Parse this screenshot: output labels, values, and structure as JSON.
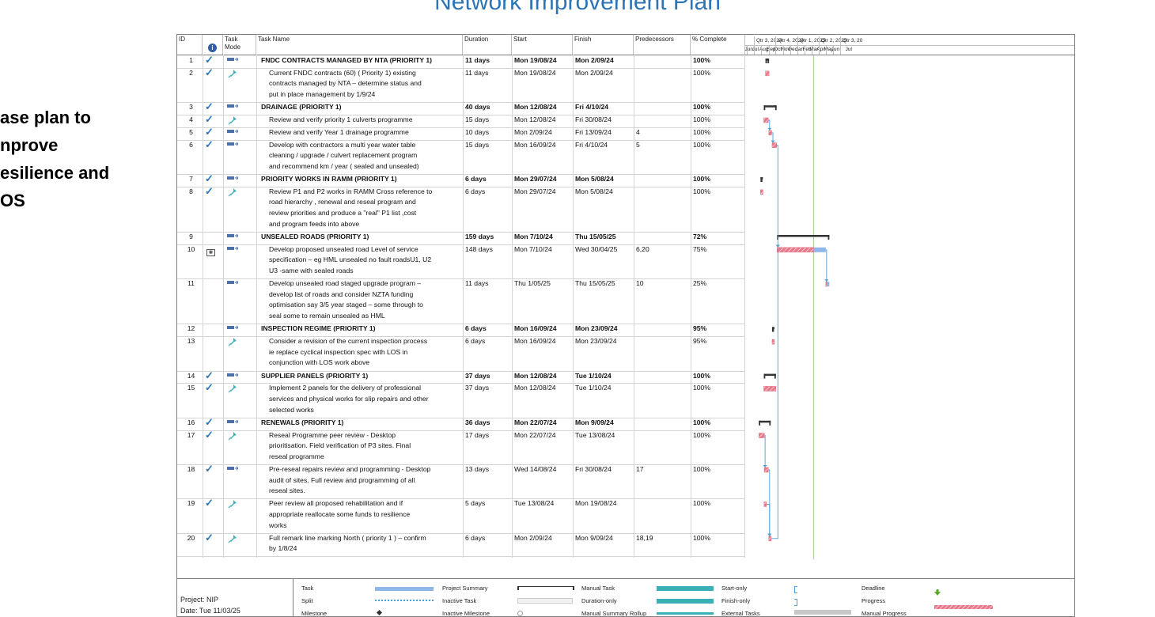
{
  "slide": {
    "title": "Network Improvement Plan",
    "side_lines": [
      "ase plan to",
      "nprove",
      "esilience and",
      "OS"
    ]
  },
  "columns": {
    "id": "ID",
    "task_mode_1": "Task",
    "task_mode_2": "Mode",
    "task_name": "Task Name",
    "duration": "Duration",
    "start": "Start",
    "finish": "Finish",
    "predecessors": "Predecessors",
    "complete": "% Complete"
  },
  "timeline": {
    "quarters": [
      "Qtr 3, 2024",
      "Qtr 4, 2024",
      "Qtr 1, 2025",
      "Qtr 2, 2025",
      "Qtr 3, 20"
    ],
    "months": [
      "Jun",
      "Jul",
      "Aug",
      "Sep",
      "Oct",
      "Nov",
      "Dec",
      "Jan",
      "Feb",
      "Mar",
      "Apr",
      "May",
      "Jun",
      "Jul"
    ]
  },
  "tasks": [
    {
      "id": "1",
      "check": true,
      "mode": "auto",
      "name": [
        "FNDC CONTRACTS MANAGED BY NTA (PRIORITY 1)"
      ],
      "summary": true,
      "duration": "11 days",
      "start": "Mon 19/08/24",
      "finish": "Mon 2/09/24",
      "pred": "",
      "complete": "100%"
    },
    {
      "id": "2",
      "check": true,
      "mode": "manual",
      "name": [
        "Current FNDC contracts (60) ( Priority 1)  existing",
        "contracts managed by NTA – determine status and",
        "put in place  management by 1/9/24"
      ],
      "summary": false,
      "duration": "11 days",
      "start": "Mon 19/08/24",
      "finish": "Mon 2/09/24",
      "pred": "",
      "complete": "100%"
    },
    {
      "id": "3",
      "check": true,
      "mode": "auto",
      "name": [
        "DRAINAGE (PRIORITY 1)"
      ],
      "summary": true,
      "duration": "40 days",
      "start": "Mon 12/08/24",
      "finish": "Fri 4/10/24",
      "pred": "",
      "complete": "100%"
    },
    {
      "id": "4",
      "check": true,
      "mode": "manual",
      "name": [
        "Review and verify priority 1 culverts programme"
      ],
      "summary": false,
      "duration": "15 days",
      "start": "Mon 12/08/24",
      "finish": "Fri 30/08/24",
      "pred": "",
      "complete": "100%"
    },
    {
      "id": "5",
      "check": true,
      "mode": "auto",
      "name": [
        "Review and verify Year 1 drainage programme"
      ],
      "summary": false,
      "duration": "10 days",
      "start": "Mon 2/09/24",
      "finish": "Fri 13/09/24",
      "pred": "4",
      "complete": "100%"
    },
    {
      "id": "6",
      "check": true,
      "mode": "auto",
      "name": [
        "Develop with contractors a multi year water table",
        "cleaning / upgrade / culvert replacement  program",
        "and recommend km / year ( sealed and unsealed)"
      ],
      "summary": false,
      "duration": "15 days",
      "start": "Mon 16/09/24",
      "finish": "Fri 4/10/24",
      "pred": "5",
      "complete": "100%"
    },
    {
      "id": "7",
      "check": true,
      "mode": "auto",
      "name": [
        "PRIORITY WORKS IN RAMM (PRIORITY 1)"
      ],
      "summary": true,
      "duration": "6 days",
      "start": "Mon 29/07/24",
      "finish": "Mon 5/08/24",
      "pred": "",
      "complete": "100%"
    },
    {
      "id": "8",
      "check": true,
      "mode": "manual",
      "name": [
        "Review P1 and P2 works in RAMM Cross reference to",
        "road hierarchy , renewal and reseal program and",
        "review priorities and produce a \"real\" P1 list ,cost",
        "and program feeds into above"
      ],
      "summary": false,
      "duration": "6 days",
      "start": "Mon 29/07/24",
      "finish": "Mon 5/08/24",
      "pred": "",
      "complete": "100%"
    },
    {
      "id": "9",
      "check": false,
      "mode": "auto",
      "name": [
        "UNSEALED ROADS (PRIORITY 1)"
      ],
      "summary": true,
      "duration": "159 days",
      "start": "Mon 7/10/24",
      "finish": "Thu 15/05/25",
      "pred": "",
      "complete": "72%"
    },
    {
      "id": "10",
      "check": false,
      "cal": true,
      "mode": "auto",
      "name": [
        "Develop proposed unsealed road Level of service",
        "specification – eg HML unsealed no fault roadsU1, U2",
        "U3 -same with sealed roads"
      ],
      "summary": false,
      "duration": "148 days",
      "start": "Mon 7/10/24",
      "finish": "Wed 30/04/25",
      "pred": "6,20",
      "complete": "75%"
    },
    {
      "id": "11",
      "check": false,
      "mode": "auto",
      "name": [
        "Develop unsealed road staged upgrade program –",
        "develop list of roads and consider NZTA funding",
        "optimisation say 3/5 year staged – some through to",
        "seal some to remain unsealed as HML"
      ],
      "summary": false,
      "duration": "11 days",
      "start": "Thu 1/05/25",
      "finish": "Thu 15/05/25",
      "pred": "10",
      "complete": "25%"
    },
    {
      "id": "12",
      "check": false,
      "mode": "auto",
      "name": [
        "INSPECTION REGIME (PRIORITY 1)"
      ],
      "summary": true,
      "duration": "6 days",
      "start": "Mon 16/09/24",
      "finish": "Mon 23/09/24",
      "pred": "",
      "complete": "95%"
    },
    {
      "id": "13",
      "check": false,
      "mode": "manual",
      "name": [
        "Consider a revision of the current inspection process",
        "ie replace cyclical inspection spec with LOS in",
        "conjunction with LOS work above"
      ],
      "summary": false,
      "duration": "6 days",
      "start": "Mon 16/09/24",
      "finish": "Mon 23/09/24",
      "pred": "",
      "complete": "95%"
    },
    {
      "id": "14",
      "check": true,
      "mode": "auto",
      "name": [
        "SUPPLIER PANELS (PRIORITY 1)"
      ],
      "summary": true,
      "duration": "37 days",
      "start": "Mon 12/08/24",
      "finish": "Tue 1/10/24",
      "pred": "",
      "complete": "100%"
    },
    {
      "id": "15",
      "check": true,
      "mode": "manual",
      "name": [
        "Implement 2 panels for the delivery of professional",
        "services and physical works for slip repairs and other",
        "selected works"
      ],
      "summary": false,
      "duration": "37 days",
      "start": "Mon 12/08/24",
      "finish": "Tue 1/10/24",
      "pred": "",
      "complete": "100%"
    },
    {
      "id": "16",
      "check": true,
      "mode": "auto",
      "name": [
        "RENEWALS (PRIORITY 1)"
      ],
      "summary": true,
      "duration": "36 days",
      "start": "Mon 22/07/24",
      "finish": "Mon 9/09/24",
      "pred": "",
      "complete": "100%"
    },
    {
      "id": "17",
      "check": true,
      "mode": "manual",
      "name": [
        "Reseal Programme peer review - Desktop",
        "prioritisation. Field verification of P3 sites. Final",
        "reseal programme"
      ],
      "summary": false,
      "duration": "17 days",
      "start": "Mon 22/07/24",
      "finish": "Tue 13/08/24",
      "pred": "",
      "complete": "100%"
    },
    {
      "id": "18",
      "check": true,
      "mode": "auto",
      "name": [
        "Pre-reseal repairs review and programming - Desktop",
        "audit of sites. Full review and programming of all",
        "reseal sites."
      ],
      "summary": false,
      "duration": "13 days",
      "start": "Wed 14/08/24",
      "finish": "Fri 30/08/24",
      "pred": "17",
      "complete": "100%"
    },
    {
      "id": "19",
      "check": true,
      "mode": "manual",
      "name": [
        "Peer review all proposed rehabilitation and if",
        "appropriate reallocate some funds to resilience",
        "works"
      ],
      "summary": false,
      "duration": "5 days",
      "start": "Tue 13/08/24",
      "finish": "Mon 19/08/24",
      "pred": "",
      "complete": "100%"
    },
    {
      "id": "20",
      "check": true,
      "mode": "manual",
      "name": [
        "Full remark line marking North ( priority 1 ) – confirm",
        "by 1/8/24"
      ],
      "summary": false,
      "duration": "6 days",
      "start": "Mon 2/09/24",
      "finish": "Mon 9/09/24",
      "pred": "18,19",
      "complete": "100%"
    }
  ],
  "legend": {
    "project": "Project: NIP",
    "date": "Date: Tue 11/03/25",
    "items": [
      [
        "Task",
        "Project Summary",
        "Manual Task",
        "Start-only",
        "Deadline"
      ],
      [
        "Split",
        "Inactive Task",
        "Duration-only",
        "Finish-only",
        "Progress"
      ],
      [
        "Milestone",
        "Inactive Milestone",
        "Manual Summary Rollup",
        "External Tasks",
        "Manual Progress"
      ]
    ]
  },
  "colors": {
    "title": "#2E75B6",
    "bar_progress": "#E8788A",
    "bar_task": "#8FB8E8",
    "summary": "#333333",
    "check": "#2E75B6",
    "link": "#4A9FD8",
    "today_line": "#9FCF8F"
  }
}
